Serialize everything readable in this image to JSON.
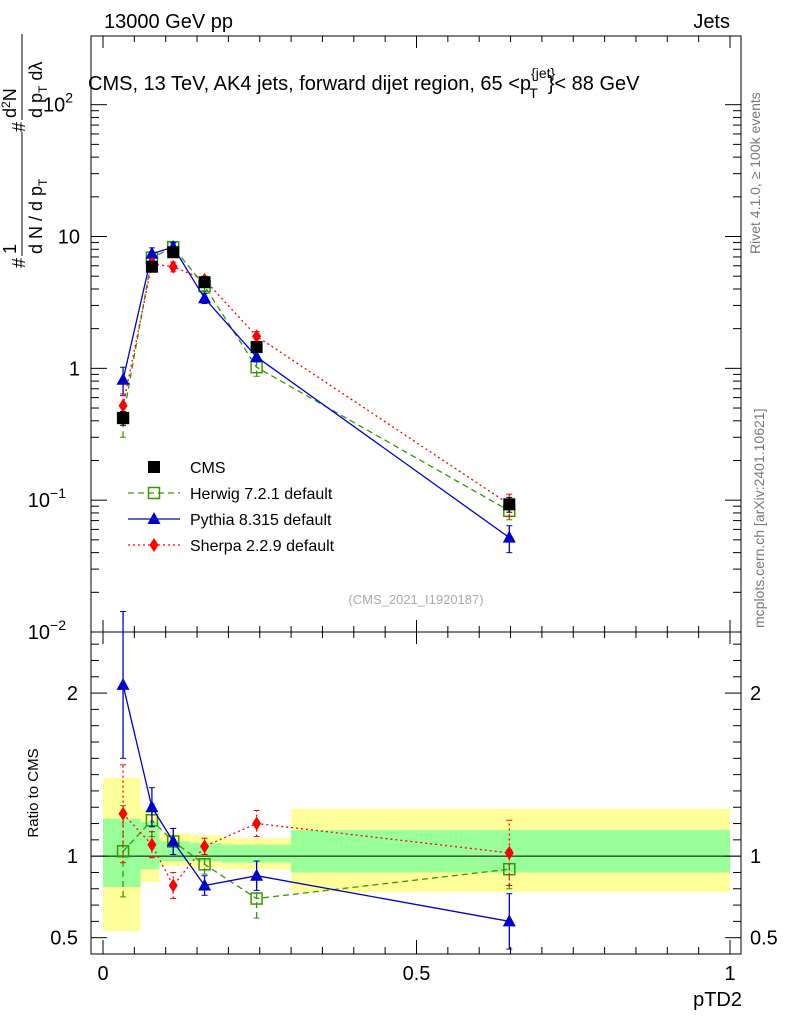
{
  "header": {
    "energy": "13000 GeV pp",
    "category": "Jets"
  },
  "side": {
    "rivet": "Rivet 4.1.0, ≥ 100k events",
    "mcplots": "mcplots.cern.ch [arXiv:2401.10621]"
  },
  "title": {
    "main": "CMS, 13 TeV, AK4 jets, forward dijet region, 65 <p",
    "sup": "{jet}",
    "sub": "T",
    "end": "}< 88 GeV"
  },
  "ylabel_main": {
    "one": "1",
    "dN": "d N / d p",
    "dNsub": "T",
    "hash": "#",
    "d2N": "d",
    "d2Nsup": "2",
    "d2Nend": "N",
    "dpt": "d p",
    "dptsub": "T",
    "dlam": " dλ"
  },
  "analysis_id": "(CMS_2021_I1920187)",
  "ratio_ylabel": "Ratio to CMS",
  "xlabel": "pTD2",
  "colors": {
    "cms": "#000000",
    "herwig": "#339900",
    "pythia": "#0000cc",
    "sherpa": "#ff0000",
    "band_inner": "#99ff99",
    "band_outer": "#ffff99"
  },
  "chart_data": {
    "type": "line",
    "x_range": [
      0,
      1
    ],
    "x_ticks": [
      "0",
      "0.5",
      "1"
    ],
    "main": {
      "yscale": "log",
      "ylim": [
        0.01,
        200
      ],
      "y_ticks": [
        {
          "value": 100,
          "base": "10",
          "exp": "2"
        },
        {
          "value": 10,
          "base": "10",
          "exp": ""
        },
        {
          "value": 1,
          "base": "1",
          "exp": ""
        },
        {
          "value": 0.1,
          "base": "10",
          "exp": "−1"
        },
        {
          "value": 0.01,
          "base": "10",
          "exp": "−2"
        }
      ],
      "x": [
        0.032,
        0.078,
        0.112,
        0.162,
        0.245,
        0.648
      ],
      "series": [
        {
          "name": "CMS",
          "key": "cms",
          "marker": "square-filled",
          "style": "none",
          "values": [
            0.42,
            5.9,
            7.6,
            4.5,
            1.45,
            0.093
          ],
          "err": [
            0.05,
            0.4,
            0.5,
            0.3,
            0.1,
            0.012
          ]
        },
        {
          "name": "Herwig 7.2.1 default",
          "key": "herwig",
          "marker": "square-open",
          "style": "dashed",
          "values": [
            0.42,
            6.9,
            8.3,
            4.2,
            1.02,
            0.083
          ],
          "err": [
            0.12,
            0.6,
            0.6,
            0.3,
            0.15,
            0.012
          ]
        },
        {
          "name": "Pythia 8.315 default",
          "key": "pythia",
          "marker": "triangle",
          "style": "solid",
          "values": [
            0.82,
            7.4,
            8.3,
            3.4,
            1.22,
            0.052
          ],
          "err": [
            0.2,
            0.8,
            0.7,
            0.3,
            0.1,
            0.012
          ]
        },
        {
          "name": "Sherpa 2.2.9 default",
          "key": "sherpa",
          "marker": "diamond",
          "style": "dotted",
          "values": [
            0.52,
            6.2,
            5.9,
            4.7,
            1.75,
            0.093
          ],
          "err": [
            0.12,
            0.5,
            0.5,
            0.3,
            0.15,
            0.018
          ]
        }
      ]
    },
    "ratio": {
      "ylabel": "Ratio to CMS",
      "ylim": [
        0.4,
        2.35
      ],
      "y_ticks": [
        "0.5",
        "1",
        "2"
      ],
      "y_tick_values": [
        0.5,
        1,
        2
      ],
      "bins": [
        {
          "lo": 0.0,
          "hi": 0.06,
          "inner": [
            0.81,
            1.23
          ],
          "outer": [
            0.54,
            1.48
          ]
        },
        {
          "lo": 0.06,
          "hi": 0.09,
          "inner": [
            0.92,
            1.21
          ],
          "outer": [
            0.84,
            1.29
          ]
        },
        {
          "lo": 0.09,
          "hi": 0.14,
          "inner": [
            0.97,
            1.09
          ],
          "outer": [
            0.94,
            1.14
          ]
        },
        {
          "lo": 0.14,
          "hi": 0.19,
          "inner": [
            0.97,
            1.08
          ],
          "outer": [
            0.93,
            1.13
          ]
        },
        {
          "lo": 0.19,
          "hi": 0.3,
          "inner": [
            0.96,
            1.07
          ],
          "outer": [
            0.92,
            1.11
          ]
        },
        {
          "lo": 0.3,
          "hi": 1.0,
          "inner": [
            0.9,
            1.16
          ],
          "outer": [
            0.78,
            1.29
          ]
        }
      ],
      "x": [
        0.032,
        0.078,
        0.112,
        0.162,
        0.245,
        0.648
      ],
      "series": [
        {
          "name": "Herwig 7.2.1 default",
          "key": "herwig",
          "marker": "square-open",
          "style": "dashed",
          "values": [
            1.03,
            1.22,
            1.09,
            0.95,
            0.74,
            0.92
          ],
          "err": [
            0.28,
            0.1,
            0.08,
            0.06,
            0.12,
            0.12
          ]
        },
        {
          "name": "Pythia 8.315 default",
          "key": "pythia",
          "marker": "triangle",
          "style": "solid",
          "values": [
            2.05,
            1.3,
            1.09,
            0.82,
            0.88,
            0.6
          ],
          "err": [
            0.45,
            0.12,
            0.08,
            0.06,
            0.09,
            0.17
          ]
        },
        {
          "name": "Sherpa 2.2.9 default",
          "key": "sherpa",
          "marker": "diamond",
          "style": "dotted",
          "values": [
            1.26,
            1.07,
            0.82,
            1.06,
            1.2,
            1.02
          ],
          "err": [
            0.3,
            0.08,
            0.08,
            0.05,
            0.08,
            0.2
          ]
        }
      ]
    }
  }
}
